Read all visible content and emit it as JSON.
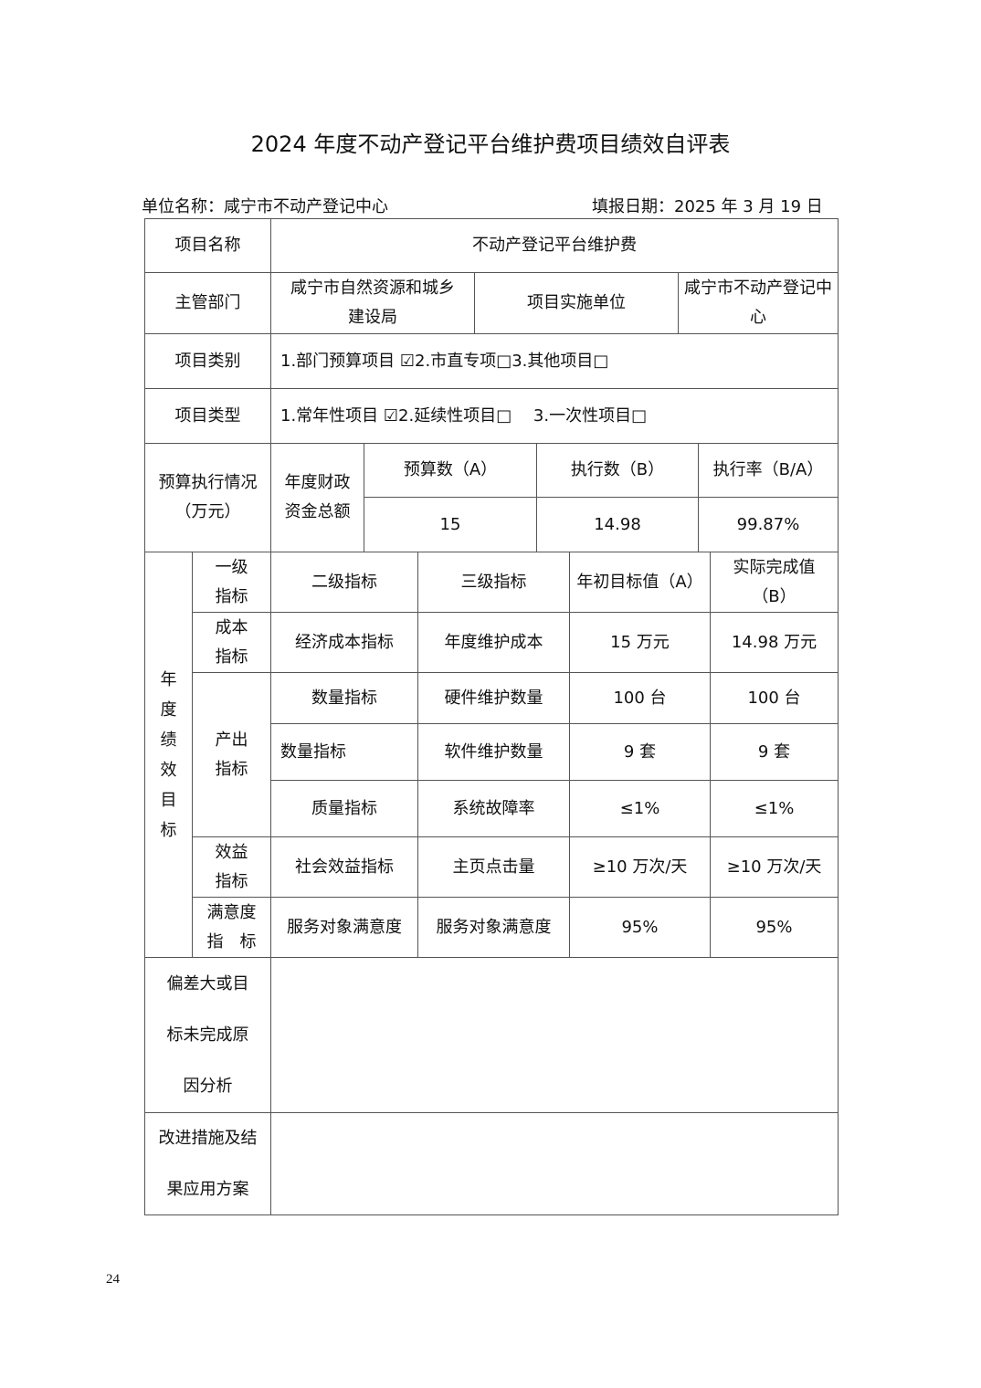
{
  "title": "2024 年度不动产登记平台维护费项目绩效自评表",
  "unit": "单位名称：咸宁市不动产登记中心",
  "date": "填报日期：2025 年 3 月 19 日",
  "basic": {
    "name_label": "项目名称",
    "name": "不动产登记平台维护费",
    "dept_label": "主管部门",
    "dept": "咸宁市自然资源和城乡建设局",
    "impl_label": "项目实施单位",
    "impl": "咸宁市不动产登记中心",
    "cat_label": "项目类别",
    "cat": "1.部门预算项目 ☑2.市直专项□3.其他项目□",
    "type_label": "项目类型",
    "type": "1.常年性项目 ☑2.延续性项目□　 3.一次性项目□"
  },
  "budget": {
    "label": "预算执行情况（万元）",
    "sub": "年度财政资金总额",
    "h_a": "预算数（A）",
    "h_b": "执行数（B）",
    "h_r": "执行率（B/A）",
    "a": "15",
    "b": "14.98",
    "r": "99.87%"
  },
  "goals": {
    "label": "年度绩效目标",
    "headers": [
      "一级指标",
      "二级指标",
      "三级指标",
      "年初目标值（A）",
      "实际完成值（B）"
    ],
    "l1": [
      "成本指标",
      "产出指标",
      "效益指标",
      "满意度指　标"
    ],
    "rows": [
      [
        "经济成本指标",
        "年度维护成本",
        "15 万元",
        "14.98 万元"
      ],
      [
        "数量指标",
        "硬件维护数量",
        "100 台",
        "100 台"
      ],
      [
        "数量指标",
        "软件维护数量",
        "9 套",
        "9 套"
      ],
      [
        "质量指标",
        "系统故障率",
        "≤1%",
        "≤1%"
      ],
      [
        "社会效益指标",
        "主页点击量",
        "≥10 万次/天",
        "≥10 万次/天"
      ],
      [
        "服务对象满意度",
        "服务对象满意度",
        "95%",
        "95%"
      ]
    ]
  },
  "analysis": {
    "label": "偏差大或目标未完成原因分析",
    "value": ""
  },
  "improve": {
    "label": "改进措施及结果应用方案",
    "value": ""
  },
  "page_number": "24"
}
